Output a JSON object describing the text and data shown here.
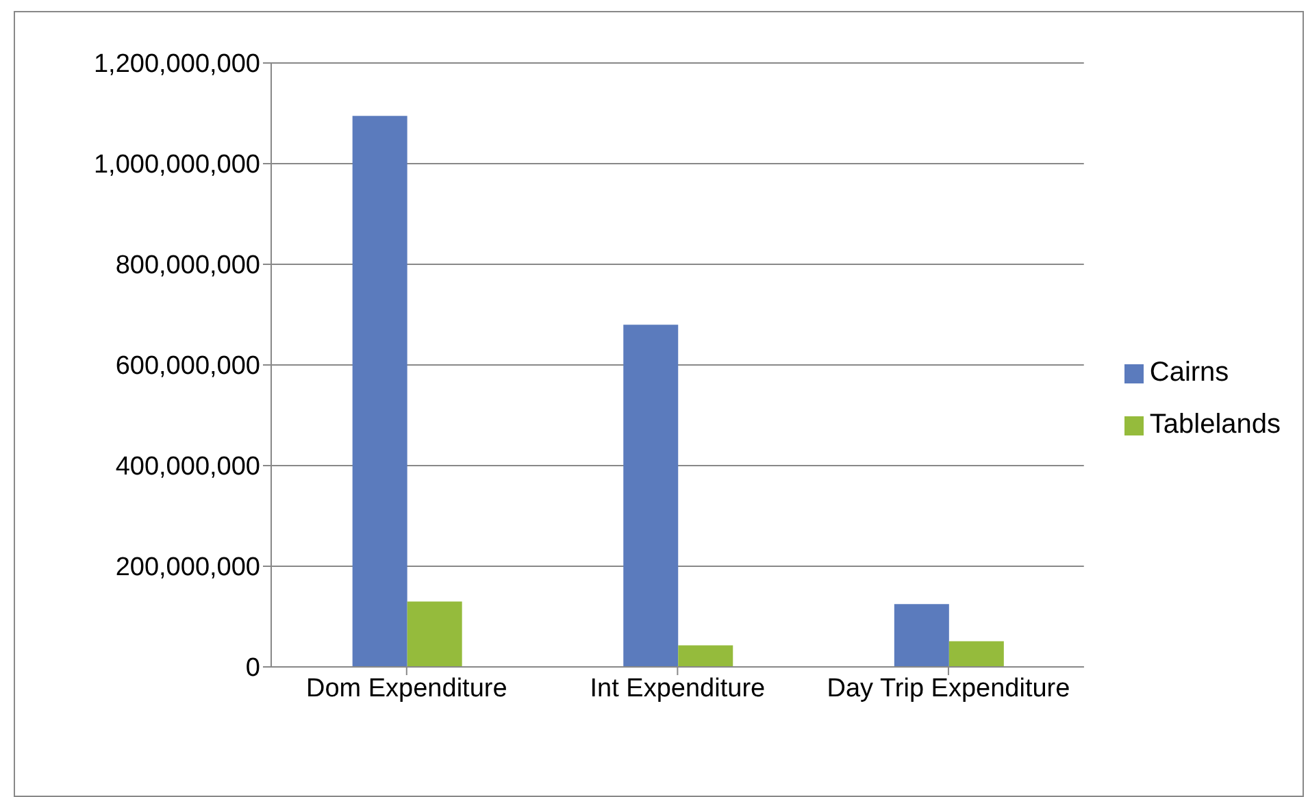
{
  "chart_data": {
    "type": "bar",
    "categories": [
      "Dom Expenditure",
      "Int Expenditure",
      "Day Trip Expenditure"
    ],
    "series": [
      {
        "name": "Cairns",
        "color": "#5b7bbd",
        "values": [
          1095000000,
          680000000,
          125000000
        ]
      },
      {
        "name": "Tablelands",
        "color": "#95bb3c",
        "values": [
          130000000,
          43000000,
          51000000
        ]
      }
    ],
    "ylim": [
      0,
      1200000000
    ],
    "yticks": [
      0,
      {
        "value": 200000000,
        "label": "200,000,000"
      },
      {
        "value": 400000000,
        "label": "400,000,000"
      },
      {
        "value": 600000000,
        "label": "600,000,000"
      },
      {
        "value": 800000000,
        "label": "800,000,000"
      },
      {
        "value": 1000000000,
        "label": "1,000,000,000"
      },
      {
        "value": 1200000000,
        "label": "1,200,000,000"
      }
    ],
    "grid": "y",
    "legend": "right"
  }
}
